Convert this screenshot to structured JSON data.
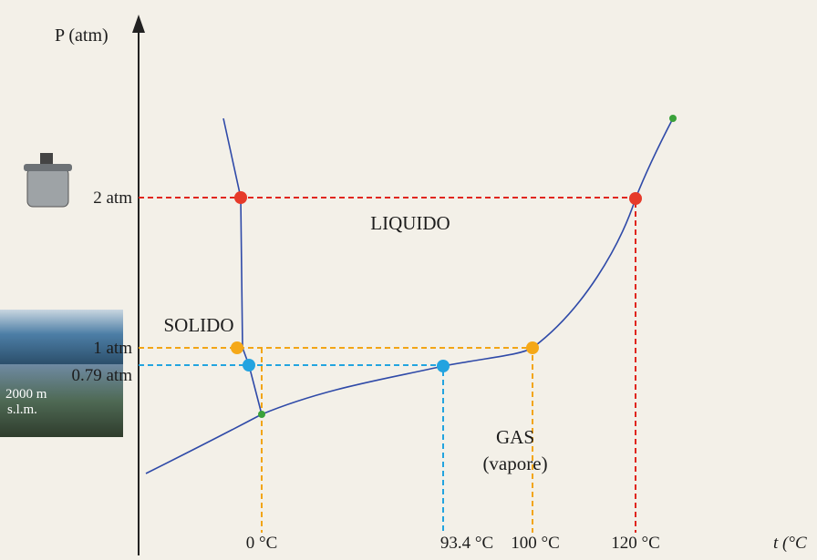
{
  "axes": {
    "y_label": "P (atm)",
    "x_label": "t (°C"
  },
  "y_ticks": [
    "2 atm",
    "1 atm",
    "0.79 atm"
  ],
  "x_ticks": [
    "0 °C",
    "93.4 °C",
    "100 °C",
    "120 °C"
  ],
  "regions": {
    "solid": "SOLIDO",
    "liquid": "LIQUIDO",
    "gas": "GAS",
    "gas_note": "(vapore)"
  },
  "photo_caption": [
    "2000 m",
    "s.l.m."
  ]
}
